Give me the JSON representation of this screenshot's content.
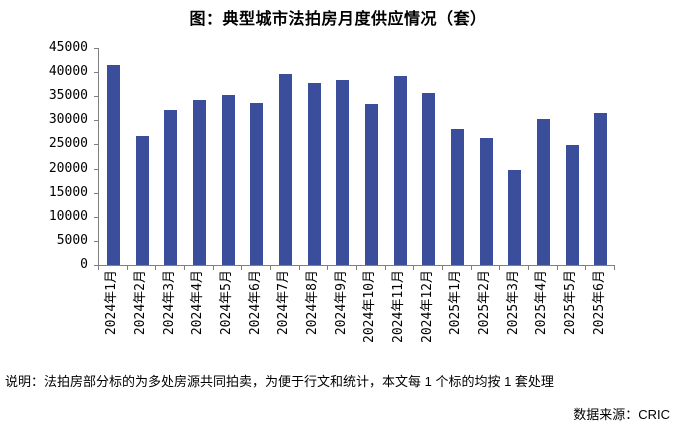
{
  "title": "图：典型城市法拍房月度供应情况（套）",
  "note": "说明：法拍房部分标的为多处房源共同拍卖，为便于行文和统计，本文每 1 个标的均按 1 套处理",
  "source": "数据来源：CRIC",
  "colors": {
    "bar": "#3A4E9C",
    "axis": "#7F7F7F",
    "text": "#000000",
    "background": "#FFFFFF"
  },
  "chart_data": {
    "type": "bar",
    "title": "图：典型城市法拍房月度供应情况（套）",
    "categories": [
      "2024年1月",
      "2024年2月",
      "2024年3月",
      "2024年4月",
      "2024年5月",
      "2024年6月",
      "2024年7月",
      "2024年8月",
      "2024年9月",
      "2024年10月",
      "2024年11月",
      "2024年12月",
      "2025年1月",
      "2025年2月",
      "2025年3月",
      "2025年4月",
      "2025年5月",
      "2025年6月"
    ],
    "values": [
      41400,
      26800,
      32100,
      34200,
      35300,
      33600,
      39700,
      37800,
      38300,
      33400,
      39200,
      35700,
      28200,
      26300,
      19800,
      30200,
      24800,
      31600
    ],
    "xlabel": "",
    "ylabel": "",
    "ylim": [
      0,
      45000
    ],
    "yticks": [
      0,
      5000,
      10000,
      15000,
      20000,
      25000,
      30000,
      35000,
      40000,
      45000
    ],
    "grid": false,
    "legend": "none",
    "bar_color": "#3A4E9C"
  }
}
